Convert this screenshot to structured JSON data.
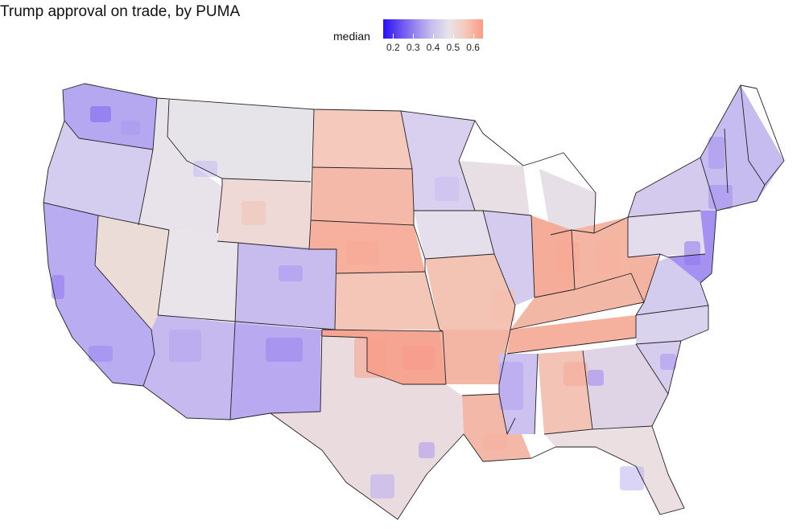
{
  "title": "Trump approval on trade, by PUMA",
  "legend": {
    "label": "median",
    "ticks": [
      "0.2",
      "0.3",
      "0.4",
      "0.5",
      "0.6"
    ],
    "tick_values": [
      0.2,
      0.3,
      0.4,
      0.5,
      0.6
    ],
    "range": [
      0.15,
      0.65
    ],
    "color_stops": [
      "#2a10f5",
      "#8d77ef",
      "#c6bdee",
      "#e6e4e8",
      "#f6c9bb",
      "#fb9a85"
    ]
  },
  "map_colors": {
    "low": "#8d77ef",
    "mid_low": "#c6bdee",
    "neutral": "#e6e4e8",
    "mid_high": "#f3c4b6",
    "high": "#f7a591",
    "border": "#222222"
  }
}
